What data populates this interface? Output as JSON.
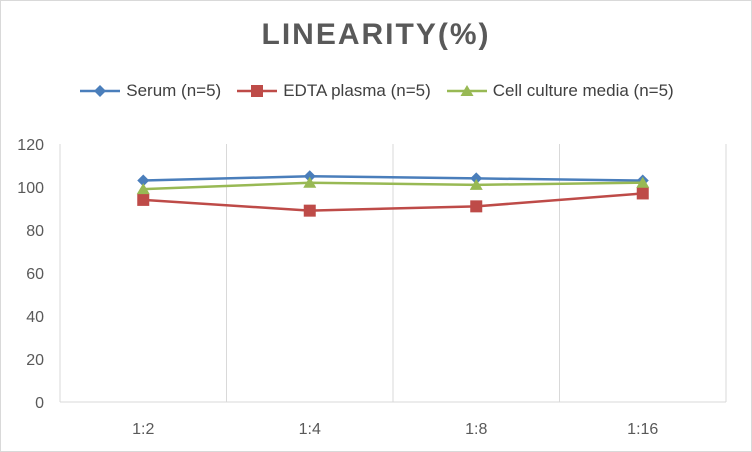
{
  "chart_data": {
    "type": "line",
    "title": "LINEARITY(%)",
    "xlabel": "",
    "ylabel": "",
    "categories": [
      "1:2",
      "1:4",
      "1:8",
      "1:16"
    ],
    "ylim": [
      0,
      120
    ],
    "yticks": [
      0,
      20,
      40,
      60,
      80,
      100,
      120
    ],
    "grid": "vertical",
    "legend_position": "top",
    "series": [
      {
        "name": "Serum (n=5)",
        "values": [
          103,
          105,
          104,
          103
        ],
        "color": "#4a7ebb",
        "marker": "diamond"
      },
      {
        "name": "EDTA plasma (n=5)",
        "values": [
          94,
          89,
          91,
          97
        ],
        "color": "#be4b48",
        "marker": "square"
      },
      {
        "name": "Cell culture media (n=5)",
        "values": [
          99,
          102,
          101,
          102
        ],
        "color": "#98b954",
        "marker": "triangle"
      }
    ]
  }
}
